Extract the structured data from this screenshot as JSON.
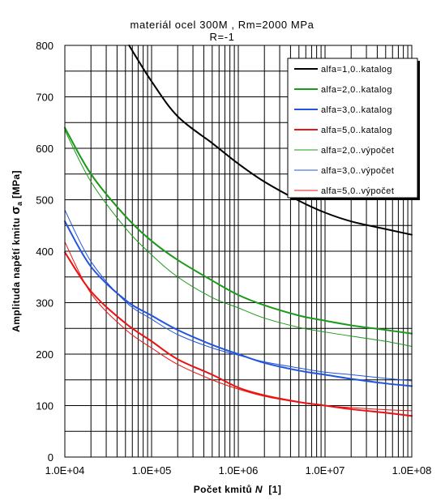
{
  "chart_data": {
    "type": "line",
    "title_lines": [
      "materiál ocel 300M , Rm=2000 MPa",
      "R=-1"
    ],
    "xlabel": {
      "prefix": "Počet kmitů ",
      "var": "N",
      "suffix": "  [1]"
    },
    "ylabel": {
      "prefix": "Amplituda napětí kmitu ",
      "var": "σ",
      "sub": "a",
      "suffix": " [MPa]"
    },
    "x_scale": "log",
    "xlim": [
      10000,
      100000000
    ],
    "ylim": [
      0,
      800
    ],
    "y_ticks": [
      0,
      100,
      200,
      300,
      400,
      500,
      600,
      700,
      800
    ],
    "y_tick_labels": [
      "0",
      "100",
      "200",
      "300",
      "400",
      "500",
      "600",
      "700",
      "800"
    ],
    "x_ticks": [
      10000,
      100000,
      1000000,
      10000000,
      100000000
    ],
    "x_tick_labels": [
      "1.0E+04",
      "1.0E+05",
      "1.0E+06",
      "1.0E+07",
      "1.0E+08"
    ],
    "grid": true,
    "legend_position": "top-right",
    "series": [
      {
        "name": "alfa=1,0..katalog",
        "color": "#000000",
        "width": 2,
        "x": [
          55000,
          100000,
          200000,
          500000,
          1000000,
          2000000,
          5000000,
          10000000,
          20000000,
          50000000,
          100000000
        ],
        "y": [
          800,
          730,
          662,
          610,
          570,
          535,
          498,
          475,
          458,
          443,
          432
        ]
      },
      {
        "name": "alfa=2,0..katalog",
        "color": "#1a9a1a",
        "width": 2,
        "x": [
          10000,
          20000,
          50000,
          100000,
          200000,
          500000,
          1000000,
          2000000,
          5000000,
          10000000,
          20000000,
          50000000,
          100000000
        ],
        "y": [
          640,
          550,
          468,
          420,
          383,
          343,
          315,
          295,
          275,
          265,
          256,
          247,
          240
        ]
      },
      {
        "name": "alfa=3,0..katalog",
        "color": "#2255dd",
        "width": 2,
        "x": [
          10000,
          20000,
          50000,
          100000,
          200000,
          500000,
          1000000,
          2000000,
          5000000,
          10000000,
          20000000,
          50000000,
          100000000
        ],
        "y": [
          458,
          370,
          305,
          275,
          247,
          218,
          200,
          183,
          168,
          160,
          152,
          143,
          138
        ]
      },
      {
        "name": "alfa=5,0..katalog",
        "color": "#ee1111",
        "width": 2,
        "x": [
          10000,
          20000,
          50000,
          100000,
          200000,
          500000,
          1000000,
          2000000,
          5000000,
          10000000,
          20000000,
          50000000,
          100000000
        ],
        "y": [
          398,
          322,
          260,
          225,
          190,
          160,
          135,
          120,
          107,
          100,
          93,
          86,
          80
        ]
      },
      {
        "name": "alfa=2,0..výpočet",
        "color": "#1a9a1a",
        "width": 1,
        "x": [
          10000,
          20000,
          50000,
          100000,
          200000,
          500000,
          1000000,
          2000000,
          5000000,
          10000000,
          20000000,
          50000000,
          100000000
        ],
        "y": [
          635,
          535,
          445,
          393,
          350,
          310,
          290,
          270,
          252,
          243,
          235,
          225,
          215
        ]
      },
      {
        "name": "alfa=3,0..výpočet",
        "color": "#2255dd",
        "width": 1,
        "x": [
          10000,
          20000,
          50000,
          100000,
          200000,
          500000,
          1000000,
          2000000,
          5000000,
          10000000,
          20000000,
          50000000,
          100000000
        ],
        "y": [
          480,
          380,
          302,
          268,
          238,
          212,
          198,
          185,
          173,
          165,
          160,
          153,
          148
        ]
      },
      {
        "name": "alfa=5,0..výpočet",
        "color": "#ee1111",
        "width": 1,
        "x": [
          10000,
          20000,
          50000,
          100000,
          200000,
          500000,
          1000000,
          2000000,
          5000000,
          10000000,
          20000000,
          50000000,
          100000000
        ],
        "y": [
          418,
          318,
          248,
          212,
          180,
          150,
          132,
          118,
          106,
          100,
          96,
          92,
          90
        ]
      }
    ]
  }
}
